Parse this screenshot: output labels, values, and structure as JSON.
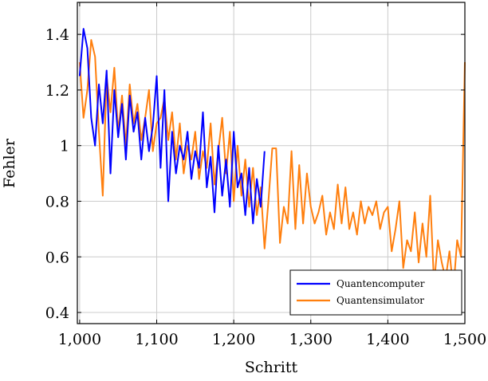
{
  "chart_data": {
    "type": "line",
    "title": "",
    "xlabel": "Schritt",
    "ylabel": "Fehler",
    "xlim": [
      997,
      1500
    ],
    "ylim": [
      0.36,
      1.515
    ],
    "grid": true,
    "legend_position": "bottom-right",
    "x_ticks": [
      1000,
      1100,
      1200,
      1300,
      1400,
      1500
    ],
    "x_tick_labels": [
      "1,000",
      "1,100",
      "1,200",
      "1,300",
      "1,400",
      "1,500"
    ],
    "y_ticks": [
      0.4,
      0.6,
      0.8,
      1.0,
      1.2,
      1.4
    ],
    "y_tick_labels": [
      "0.4",
      "0.6",
      "0.8",
      "1",
      "1.2",
      "1.4"
    ],
    "series": [
      {
        "name": "Quantencomputer",
        "color": "#0000ff",
        "x": [
          1000,
          1005,
          1010,
          1015,
          1020,
          1025,
          1030,
          1035,
          1040,
          1045,
          1050,
          1055,
          1060,
          1065,
          1070,
          1075,
          1080,
          1085,
          1090,
          1095,
          1100,
          1105,
          1110,
          1115,
          1120,
          1125,
          1130,
          1135,
          1140,
          1145,
          1150,
          1155,
          1160,
          1165,
          1170,
          1175,
          1180,
          1185,
          1190,
          1195,
          1200,
          1205,
          1210,
          1215,
          1220,
          1225,
          1230,
          1235,
          1240
        ],
        "y": [
          1.25,
          1.42,
          1.35,
          1.1,
          1.0,
          1.22,
          1.08,
          1.27,
          0.9,
          1.2,
          1.03,
          1.15,
          0.95,
          1.18,
          1.05,
          1.12,
          0.95,
          1.1,
          0.98,
          1.07,
          1.25,
          0.92,
          1.2,
          0.8,
          1.05,
          0.9,
          1.0,
          0.95,
          1.05,
          0.88,
          0.98,
          0.92,
          1.12,
          0.85,
          0.96,
          0.76,
          1.0,
          0.82,
          0.95,
          0.78,
          1.05,
          0.85,
          0.9,
          0.75,
          0.92,
          0.72,
          0.88,
          0.78,
          0.98
        ]
      },
      {
        "name": "Quantensimulator",
        "color": "#ff7f0e",
        "x": [
          1000,
          1005,
          1010,
          1015,
          1020,
          1025,
          1030,
          1035,
          1040,
          1045,
          1050,
          1055,
          1060,
          1065,
          1070,
          1075,
          1080,
          1085,
          1090,
          1095,
          1100,
          1105,
          1110,
          1115,
          1120,
          1125,
          1130,
          1135,
          1140,
          1145,
          1150,
          1155,
          1160,
          1165,
          1170,
          1175,
          1180,
          1185,
          1190,
          1195,
          1200,
          1205,
          1210,
          1215,
          1220,
          1225,
          1230,
          1235,
          1240,
          1245,
          1250,
          1255,
          1260,
          1265,
          1270,
          1275,
          1280,
          1285,
          1290,
          1295,
          1300,
          1305,
          1310,
          1315,
          1320,
          1325,
          1330,
          1335,
          1340,
          1345,
          1350,
          1355,
          1360,
          1365,
          1370,
          1375,
          1380,
          1385,
          1390,
          1395,
          1400,
          1405,
          1410,
          1415,
          1420,
          1425,
          1430,
          1435,
          1440,
          1445,
          1450,
          1455,
          1460,
          1465,
          1470,
          1475,
          1480,
          1485,
          1490,
          1495,
          1500
        ],
        "y": [
          1.3,
          1.1,
          1.2,
          1.38,
          1.32,
          1.05,
          0.82,
          1.25,
          1.12,
          1.28,
          1.05,
          1.18,
          1.0,
          1.22,
          1.08,
          1.15,
          1.02,
          1.1,
          1.2,
          0.98,
          1.08,
          1.1,
          1.17,
          1.02,
          1.12,
          0.95,
          1.08,
          0.9,
          1.0,
          0.95,
          1.05,
          0.88,
          0.98,
          0.92,
          1.08,
          0.86,
          0.98,
          1.1,
          0.9,
          1.05,
          0.8,
          1.0,
          0.82,
          0.95,
          0.78,
          0.92,
          0.75,
          0.85,
          0.63,
          0.8,
          0.99,
          0.99,
          0.65,
          0.78,
          0.72,
          0.98,
          0.7,
          0.93,
          0.72,
          0.9,
          0.78,
          0.72,
          0.76,
          0.82,
          0.68,
          0.76,
          0.7,
          0.86,
          0.72,
          0.85,
          0.7,
          0.76,
          0.68,
          0.8,
          0.72,
          0.78,
          0.75,
          0.8,
          0.7,
          0.76,
          0.78,
          0.62,
          0.7,
          0.8,
          0.56,
          0.66,
          0.62,
          0.76,
          0.58,
          0.72,
          0.6,
          0.82,
          0.5,
          0.66,
          0.58,
          0.52,
          0.62,
          0.48,
          0.66,
          0.6,
          1.3
        ]
      }
    ]
  }
}
